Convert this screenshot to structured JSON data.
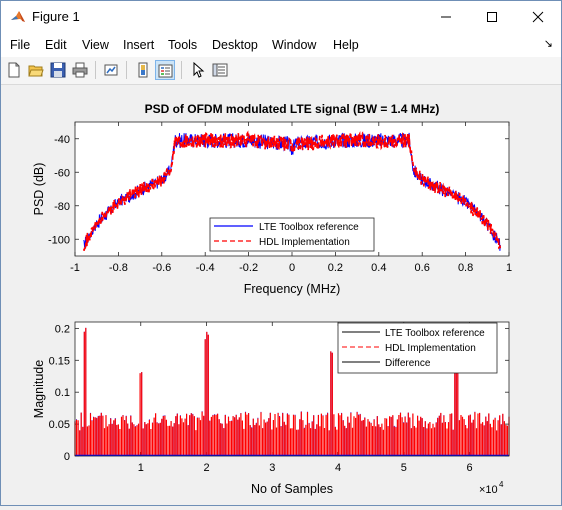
{
  "window": {
    "title": "Figure 1"
  },
  "menu": [
    "File",
    "Edit",
    "View",
    "Insert",
    "Tools",
    "Desktop",
    "Window",
    "Help"
  ],
  "toolbar_icons": [
    "new-figure-icon",
    "open-file-icon",
    "save-icon",
    "print-icon",
    "link-plot-icon",
    "insert-colorbar-icon",
    "insert-legend-icon",
    "edit-plot-icon",
    "property-inspector-icon"
  ],
  "chart_data": [
    {
      "type": "line",
      "title": "PSD of OFDM modulated LTE signal (BW = 1.4 MHz)",
      "xlabel": "Frequency (MHz)",
      "ylabel": "PSD (dB)",
      "xlim": [
        -1,
        1
      ],
      "ylim": [
        -110,
        -30
      ],
      "xticks": [
        "-1",
        "-0.8",
        "-0.6",
        "-0.4",
        "-0.2",
        "0",
        "0.2",
        "0.4",
        "0.6",
        "0.8",
        "1"
      ],
      "yticks": [
        "-40",
        "-60",
        "-80",
        "-100"
      ],
      "legend_location": "bottom-center",
      "series": [
        {
          "name": "LTE Toolbox reference",
          "color": "#0000ff",
          "style": "solid"
        },
        {
          "name": "HDL Implementation",
          "color": "#ff0000",
          "style": "dashed"
        }
      ],
      "envelope_x": [
        -0.96,
        -0.9,
        -0.8,
        -0.7,
        -0.6,
        -0.56,
        -0.54,
        -0.4,
        -0.2,
        -0.02,
        0,
        0.02,
        0.2,
        0.4,
        0.54,
        0.56,
        0.6,
        0.7,
        0.8,
        0.9,
        0.96
      ],
      "envelope_y": [
        -103,
        -90,
        -77,
        -70,
        -64,
        -58,
        -41,
        -41,
        -41,
        -43,
        -46,
        -43,
        -41,
        -41,
        -41,
        -58,
        -64,
        -70,
        -77,
        -90,
        -103
      ]
    },
    {
      "type": "line",
      "xlabel": "No of Samples",
      "ylabel": "Magnitude",
      "xlim": [
        0,
        66000
      ],
      "ylim": [
        0,
        0.21
      ],
      "xticks": [
        "1",
        "2",
        "3",
        "4",
        "5",
        "6"
      ],
      "yticks": [
        "0.2",
        "0.15",
        "0.1",
        "0.05",
        "0"
      ],
      "x_exponent": "×10^4",
      "legend_location": "top-right",
      "series": [
        {
          "name": "LTE Toolbox reference",
          "color": "#000000",
          "style": "solid"
        },
        {
          "name": "HDL Implementation",
          "color": "#ff0000",
          "style": "dashed"
        },
        {
          "name": "Difference",
          "color": "#000000",
          "style": "solid"
        }
      ],
      "baseline_level": 0.055,
      "peaks": [
        {
          "x": 1500,
          "y": 0.21
        },
        {
          "x": 10000,
          "y": 0.14
        },
        {
          "x": 20000,
          "y": 0.195
        },
        {
          "x": 39000,
          "y": 0.17
        },
        {
          "x": 58000,
          "y": 0.15
        }
      ]
    }
  ]
}
